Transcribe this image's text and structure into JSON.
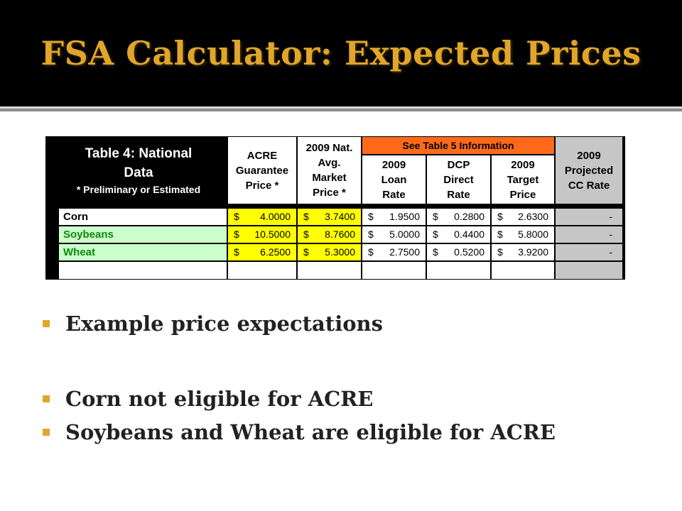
{
  "slide": {
    "title": "FSA Calculator: Expected Prices"
  },
  "table": {
    "heading_line1": "Table 4:  National",
    "heading_line2": "Data",
    "heading_note": "* Preliminary or Estimated",
    "col_acre": "ACRE\nGuarantee\nPrice *",
    "col_avg": "2009 Nat.\nAvg.\nMarket\nPrice *",
    "group_label": "See Table 5 Information",
    "col_loan": "2009\nLoan\nRate",
    "col_dcp": "DCP\nDirect\nRate",
    "col_target": "2009\nTarget\nPrice",
    "col_cc": "2009\nProjected\nCC Rate",
    "currency": "$",
    "rows": [
      {
        "crop": "Corn",
        "acre": "4.0000",
        "avg": "3.7400",
        "loan": "1.9500",
        "dcp": "0.2800",
        "target": "2.6300",
        "cc": "-"
      },
      {
        "crop": "Soybeans",
        "acre": "10.5000",
        "avg": "8.7600",
        "loan": "5.0000",
        "dcp": "0.4400",
        "target": "5.8000",
        "cc": "-"
      },
      {
        "crop": "Wheat",
        "acre": "6.2500",
        "avg": "5.3000",
        "loan": "2.7500",
        "dcp": "0.5200",
        "target": "3.9200",
        "cc": "-"
      }
    ]
  },
  "bullets": [
    "Example price expectations",
    "Corn not eligible for ACRE",
    "Soybeans and Wheat are eligible for ACRE"
  ],
  "colors": {
    "title": "#e0a52a",
    "bullet_marker": "#e0a52a",
    "highlight_yellow": "#ffff00",
    "highlight_orange": "#ff6a1a",
    "row_green": "#ccffcc",
    "crop_text_green": "#0a8a0a",
    "cc_gray": "#c6c6c6"
  }
}
